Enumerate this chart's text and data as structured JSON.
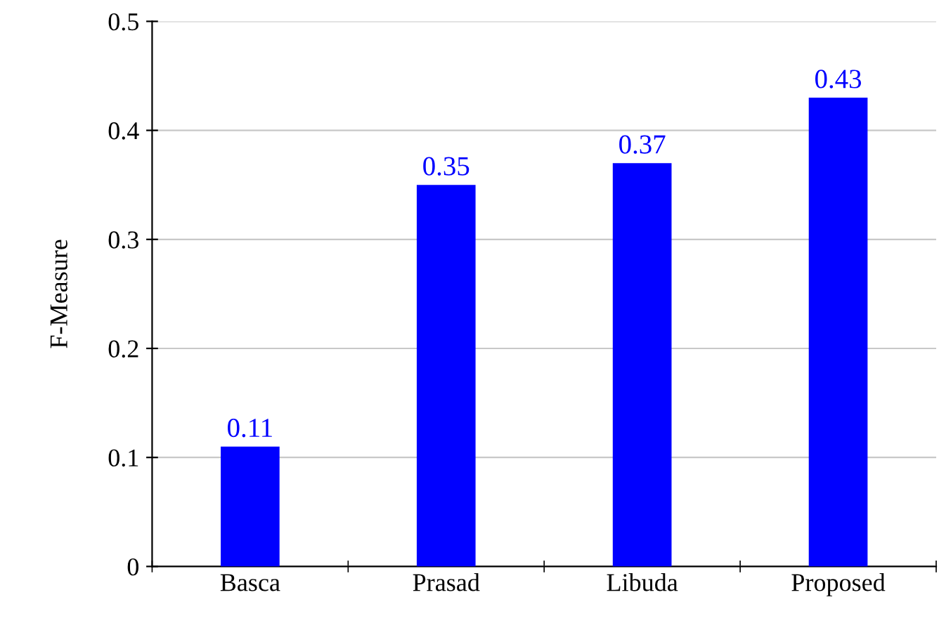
{
  "chart_data": {
    "type": "bar",
    "ylabel": "F-Measure",
    "categories": [
      "Basca",
      "Prasad",
      "Libuda",
      "Proposed"
    ],
    "values": [
      0.11,
      0.35,
      0.37,
      0.43
    ],
    "color": "#0000ff",
    "data_labels": true,
    "ylim": [
      0,
      0.5
    ],
    "yticks": [
      0,
      0.1,
      0.2,
      0.3,
      0.4,
      0.5
    ],
    "grid": "y",
    "legend": false
  }
}
